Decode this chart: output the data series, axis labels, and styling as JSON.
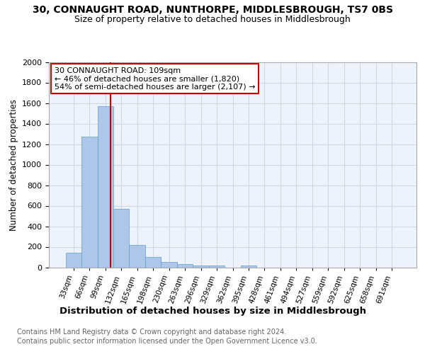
{
  "title_line1": "30, CONNAUGHT ROAD, NUNTHORPE, MIDDLESBROUGH, TS7 0BS",
  "title_line2": "Size of property relative to detached houses in Middlesbrough",
  "xlabel": "Distribution of detached houses by size in Middlesbrough",
  "ylabel": "Number of detached properties",
  "categories": [
    "33sqm",
    "66sqm",
    "99sqm",
    "132sqm",
    "165sqm",
    "198sqm",
    "230sqm",
    "263sqm",
    "296sqm",
    "329sqm",
    "362sqm",
    "395sqm",
    "428sqm",
    "461sqm",
    "494sqm",
    "527sqm",
    "559sqm",
    "592sqm",
    "625sqm",
    "658sqm",
    "691sqm"
  ],
  "bar_heights": [
    140,
    1270,
    1570,
    570,
    220,
    100,
    55,
    30,
    20,
    20,
    0,
    20,
    0,
    0,
    0,
    0,
    0,
    0,
    0,
    0,
    0
  ],
  "bar_color": "#aec6e8",
  "bar_edge_color": "#5a9fd4",
  "grid_color": "#d0d8e8",
  "background_color": "#eef2fa",
  "red_line_x": 2.33,
  "annotation_text": "30 CONNAUGHT ROAD: 109sqm\n← 46% of detached houses are smaller (1,820)\n54% of semi-detached houses are larger (2,107) →",
  "annotation_box_color": "#ffffff",
  "annotation_edge_color": "#cc0000",
  "ylim": [
    0,
    2000
  ],
  "footer_line1": "Contains HM Land Registry data © Crown copyright and database right 2024.",
  "footer_line2": "Contains public sector information licensed under the Open Government Licence v3.0.",
  "title_fontsize": 10,
  "subtitle_fontsize": 9,
  "footer_fontsize": 7,
  "ylabel_fontsize": 8.5,
  "xlabel_fontsize": 9.5,
  "annotation_fontsize": 8,
  "xtick_fontsize": 7.5,
  "ytick_fontsize": 8
}
